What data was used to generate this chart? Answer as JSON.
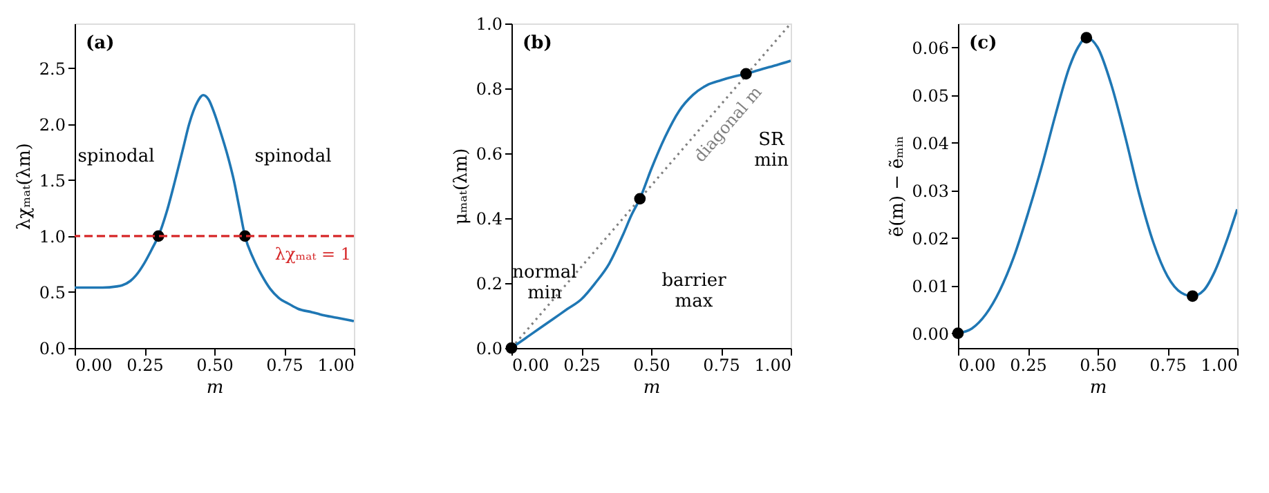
{
  "chart_data": [
    {
      "type": "line",
      "xlabel": "m",
      "ylabel": "λχₘₐₜ(λm)",
      "xlim": [
        0,
        1
      ],
      "ylim": [
        0,
        2.9
      ],
      "xticks": [
        {
          "value": 0,
          "label": "0.00"
        },
        {
          "value": 0.25,
          "label": "0.25"
        },
        {
          "value": 0.5,
          "label": "0.50"
        },
        {
          "value": 0.75,
          "label": "0.75"
        },
        {
          "value": 1,
          "label": "1.00"
        }
      ],
      "yticks": [
        {
          "value": 0,
          "label": "0.0"
        },
        0.5,
        {
          "value": 1,
          "label": "1.0"
        },
        1.5,
        {
          "value": 2,
          "label": "2.0"
        },
        2.5
      ],
      "x": [
        0,
        0.05,
        0.1,
        0.15,
        0.17,
        0.2,
        0.22,
        0.25,
        0.28,
        0.3,
        0.33,
        0.36,
        0.39,
        0.41,
        0.44,
        0.46,
        0.48,
        0.5,
        0.52,
        0.55,
        0.57,
        0.59,
        0.61,
        0.64,
        0.67,
        0.7,
        0.73,
        0.77,
        0.8,
        0.85,
        0.88,
        0.94,
        1.0
      ],
      "series": [
        {
          "color": "#1f77b4",
          "marker": "none",
          "line_style": "solid",
          "values": [
            0.54,
            0.54,
            0.54,
            0.55,
            0.56,
            0.6,
            0.65,
            0.76,
            0.9,
            1.0,
            1.22,
            1.5,
            1.8,
            2.0,
            2.2,
            2.26,
            2.22,
            2.1,
            1.95,
            1.7,
            1.5,
            1.25,
            1.0,
            0.8,
            0.65,
            0.53,
            0.45,
            0.39,
            0.35,
            0.32,
            0.3,
            0.27,
            0.24
          ]
        },
        {
          "type": "scatter",
          "color": "#000000",
          "marker": "circle",
          "x": [
            0.3,
            0.61
          ],
          "values": [
            1.0,
            1.0
          ]
        }
      ],
      "ref_lines": [
        {
          "axis": "y",
          "value": 1,
          "label": "λχₘₐₜ = 1",
          "color": "#d62728",
          "line_style": "dashed"
        }
      ],
      "annotations": [
        "(a)",
        "spinodal",
        "spinodal"
      ],
      "grid": false
    },
    {
      "type": "line",
      "xlabel": "m",
      "ylabel": "μₘₐₜ(λm)",
      "xlim": [
        0,
        1
      ],
      "ylim": [
        0,
        1
      ],
      "xticks": [
        {
          "value": 0,
          "label": "0.00"
        },
        {
          "value": 0.25,
          "label": "0.25"
        },
        {
          "value": 0.5,
          "label": "0.50"
        },
        {
          "value": 0.75,
          "label": "0.75"
        },
        {
          "value": 1,
          "label": "1.00"
        }
      ],
      "yticks": [
        {
          "value": 0,
          "label": "0.0"
        },
        0.2,
        0.4,
        0.6,
        0.8,
        {
          "value": 1,
          "label": "1.0"
        }
      ],
      "x": [
        0,
        0.05,
        0.1,
        0.15,
        0.2,
        0.25,
        0.3,
        0.35,
        0.4,
        0.43,
        0.46,
        0.5,
        0.55,
        0.6,
        0.65,
        0.7,
        0.75,
        0.8,
        0.84,
        0.9,
        0.95,
        1.0
      ],
      "series": [
        {
          "color": "#808080",
          "marker": "none",
          "line_style": "dotted",
          "name": "diagonal m",
          "x": [
            0,
            1
          ],
          "values": [
            0,
            1
          ]
        },
        {
          "color": "#1f77b4",
          "marker": "none",
          "line_style": "solid",
          "values": [
            0,
            0.03,
            0.06,
            0.09,
            0.12,
            0.15,
            0.2,
            0.26,
            0.35,
            0.41,
            0.46,
            0.55,
            0.65,
            0.73,
            0.78,
            0.81,
            0.825,
            0.837,
            0.845,
            0.86,
            0.872,
            0.885
          ]
        },
        {
          "type": "scatter",
          "color": "#000000",
          "marker": "circle",
          "x": [
            0,
            0.46,
            0.84
          ],
          "values": [
            0,
            0.46,
            0.845
          ]
        }
      ],
      "annotations": [
        "(b)",
        "normal\nmin",
        "barrier\nmax",
        "SR\nmin"
      ],
      "grid": false
    },
    {
      "type": "line",
      "xlabel": "m",
      "ylabel": "ẽ(m) − ẽₘᵢₙ",
      "xlim": [
        0,
        1
      ],
      "ylim": [
        -0.0031,
        0.065
      ],
      "xticks": [
        {
          "value": 0,
          "label": "0.00"
        },
        {
          "value": 0.25,
          "label": "0.25"
        },
        {
          "value": 0.5,
          "label": "0.50"
        },
        {
          "value": 0.75,
          "label": "0.75"
        },
        {
          "value": 1,
          "label": "1.00"
        }
      ],
      "yticks": [
        {
          "value": 0,
          "label": "0.00"
        },
        0.01,
        0.02,
        0.03,
        0.04,
        0.05,
        0.06
      ],
      "x": [
        0,
        0.05,
        0.1,
        0.15,
        0.2,
        0.25,
        0.3,
        0.35,
        0.4,
        0.43,
        0.46,
        0.5,
        0.55,
        0.6,
        0.65,
        0.7,
        0.75,
        0.8,
        0.84,
        0.88,
        0.92,
        0.96,
        1.0
      ],
      "series": [
        {
          "color": "#1f77b4",
          "marker": "none",
          "line_style": "solid",
          "values": [
            0,
            0.001,
            0.004,
            0.009,
            0.016,
            0.025,
            0.035,
            0.046,
            0.056,
            0.06,
            0.062,
            0.06,
            0.052,
            0.041,
            0.029,
            0.019,
            0.012,
            0.0085,
            0.0078,
            0.009,
            0.013,
            0.019,
            0.026
          ]
        },
        {
          "type": "scatter",
          "color": "#000000",
          "marker": "circle",
          "x": [
            0,
            0.46,
            0.84
          ],
          "values": [
            0,
            0.062,
            0.0078
          ]
        }
      ],
      "annotations": [
        "(c)"
      ],
      "grid": false
    }
  ]
}
